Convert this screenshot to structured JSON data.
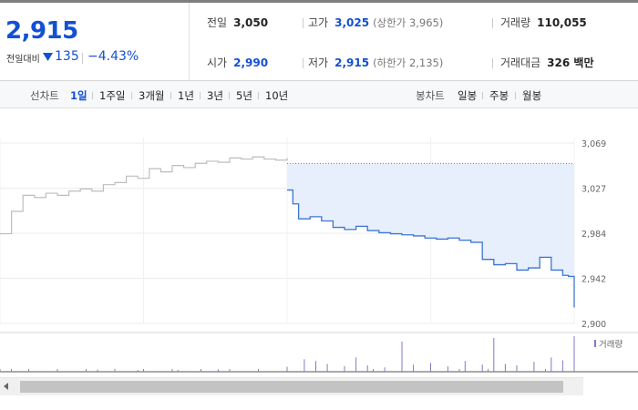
{
  "quote": {
    "price": "2,915",
    "change_label": "전일대비",
    "change_value": "135",
    "change_direction": "down",
    "change_pct": "−4.43%"
  },
  "stats": {
    "prev_close": {
      "label": "전일",
      "value": "3,050"
    },
    "high": {
      "label": "고가",
      "value": "3,025",
      "sub": "(상한가 3,965)"
    },
    "volume": {
      "label": "거래량",
      "value": "110,055"
    },
    "open": {
      "label": "시가",
      "value": "2,990"
    },
    "low": {
      "label": "저가",
      "value": "2,915",
      "sub": "(하한가 2,135)"
    },
    "amount": {
      "label": "거래대금",
      "value": "326 백만"
    }
  },
  "toolbar": {
    "line_chart_label": "선차트",
    "line_periods": [
      {
        "label": "1일",
        "active": true
      },
      {
        "label": "1주일",
        "active": false
      },
      {
        "label": "3개월",
        "active": false
      },
      {
        "label": "1년",
        "active": false
      },
      {
        "label": "3년",
        "active": false
      },
      {
        "label": "5년",
        "active": false
      },
      {
        "label": "10년",
        "active": false
      }
    ],
    "candle_chart_label": "봉차트",
    "candle_periods": [
      {
        "label": "일봉"
      },
      {
        "label": "주봉"
      },
      {
        "label": "월봉"
      }
    ]
  },
  "chart_data": {
    "type": "line",
    "ylim": [
      2900,
      3069
    ],
    "y_ticks": [
      "3,069",
      "3,027",
      "2,984",
      "2,942",
      "2,900"
    ],
    "series": [
      {
        "name": "",
        "color": "#bdbdbd",
        "x": [
          0,
          2,
          4,
          6,
          8,
          10,
          12,
          14,
          16,
          18,
          20,
          22,
          24,
          26,
          28,
          30,
          32,
          34,
          36,
          38,
          40,
          42,
          44,
          46,
          48,
          50
        ],
        "y": [
          2984,
          3005,
          3020,
          3018,
          3022,
          3020,
          3024,
          3026,
          3024,
          3030,
          3032,
          3038,
          3036,
          3045,
          3042,
          3048,
          3046,
          3050,
          3052,
          3051,
          3055,
          3054,
          3056,
          3054,
          3053,
          3055
        ]
      },
      {
        "name": "",
        "color": "#3e74d6",
        "x": [
          50,
          51,
          52,
          54,
          56,
          58,
          60,
          62,
          64,
          66,
          68,
          70,
          72,
          74,
          76,
          78,
          80,
          82,
          84,
          86,
          88,
          90,
          92,
          94,
          96,
          98,
          99,
          100
        ],
        "y": [
          3025,
          3012,
          2998,
          3000,
          2996,
          2990,
          2988,
          2991,
          2987,
          2985,
          2984,
          2983,
          2982,
          2980,
          2979,
          2980,
          2978,
          2976,
          2960,
          2955,
          2956,
          2950,
          2952,
          2962,
          2950,
          2945,
          2944,
          2915
        ]
      }
    ],
    "reference_line": 3050,
    "volume": {
      "name": "거래량",
      "bars": [
        {
          "x": 2,
          "v": 0.08
        },
        {
          "x": 10,
          "v": 0.05
        },
        {
          "x": 17,
          "v": 0.06
        },
        {
          "x": 24,
          "v": 0.05
        },
        {
          "x": 31,
          "v": 0.04
        },
        {
          "x": 38,
          "v": 0.07
        },
        {
          "x": 45,
          "v": 0.05
        },
        {
          "x": 50,
          "v": 0.14
        },
        {
          "x": 53,
          "v": 0.35
        },
        {
          "x": 55,
          "v": 0.3
        },
        {
          "x": 57,
          "v": 0.22
        },
        {
          "x": 60,
          "v": 0.16
        },
        {
          "x": 62,
          "v": 0.4
        },
        {
          "x": 64,
          "v": 0.18
        },
        {
          "x": 67,
          "v": 0.12
        },
        {
          "x": 70,
          "v": 0.85
        },
        {
          "x": 72,
          "v": 0.2
        },
        {
          "x": 75,
          "v": 0.25
        },
        {
          "x": 78,
          "v": 0.15
        },
        {
          "x": 81,
          "v": 0.3
        },
        {
          "x": 84,
          "v": 0.2
        },
        {
          "x": 86,
          "v": 0.95
        },
        {
          "x": 88,
          "v": 0.22
        },
        {
          "x": 90,
          "v": 0.18
        },
        {
          "x": 93,
          "v": 0.28
        },
        {
          "x": 96,
          "v": 0.4
        },
        {
          "x": 98,
          "v": 0.32
        },
        {
          "x": 100,
          "v": 1.0
        }
      ]
    }
  },
  "colors": {
    "blue": "#1350d4",
    "line_prev": "#bdbdbd",
    "line_today": "#3e74d6",
    "fill_today": "#e6effb",
    "volume_bar": "#8a74c8"
  }
}
